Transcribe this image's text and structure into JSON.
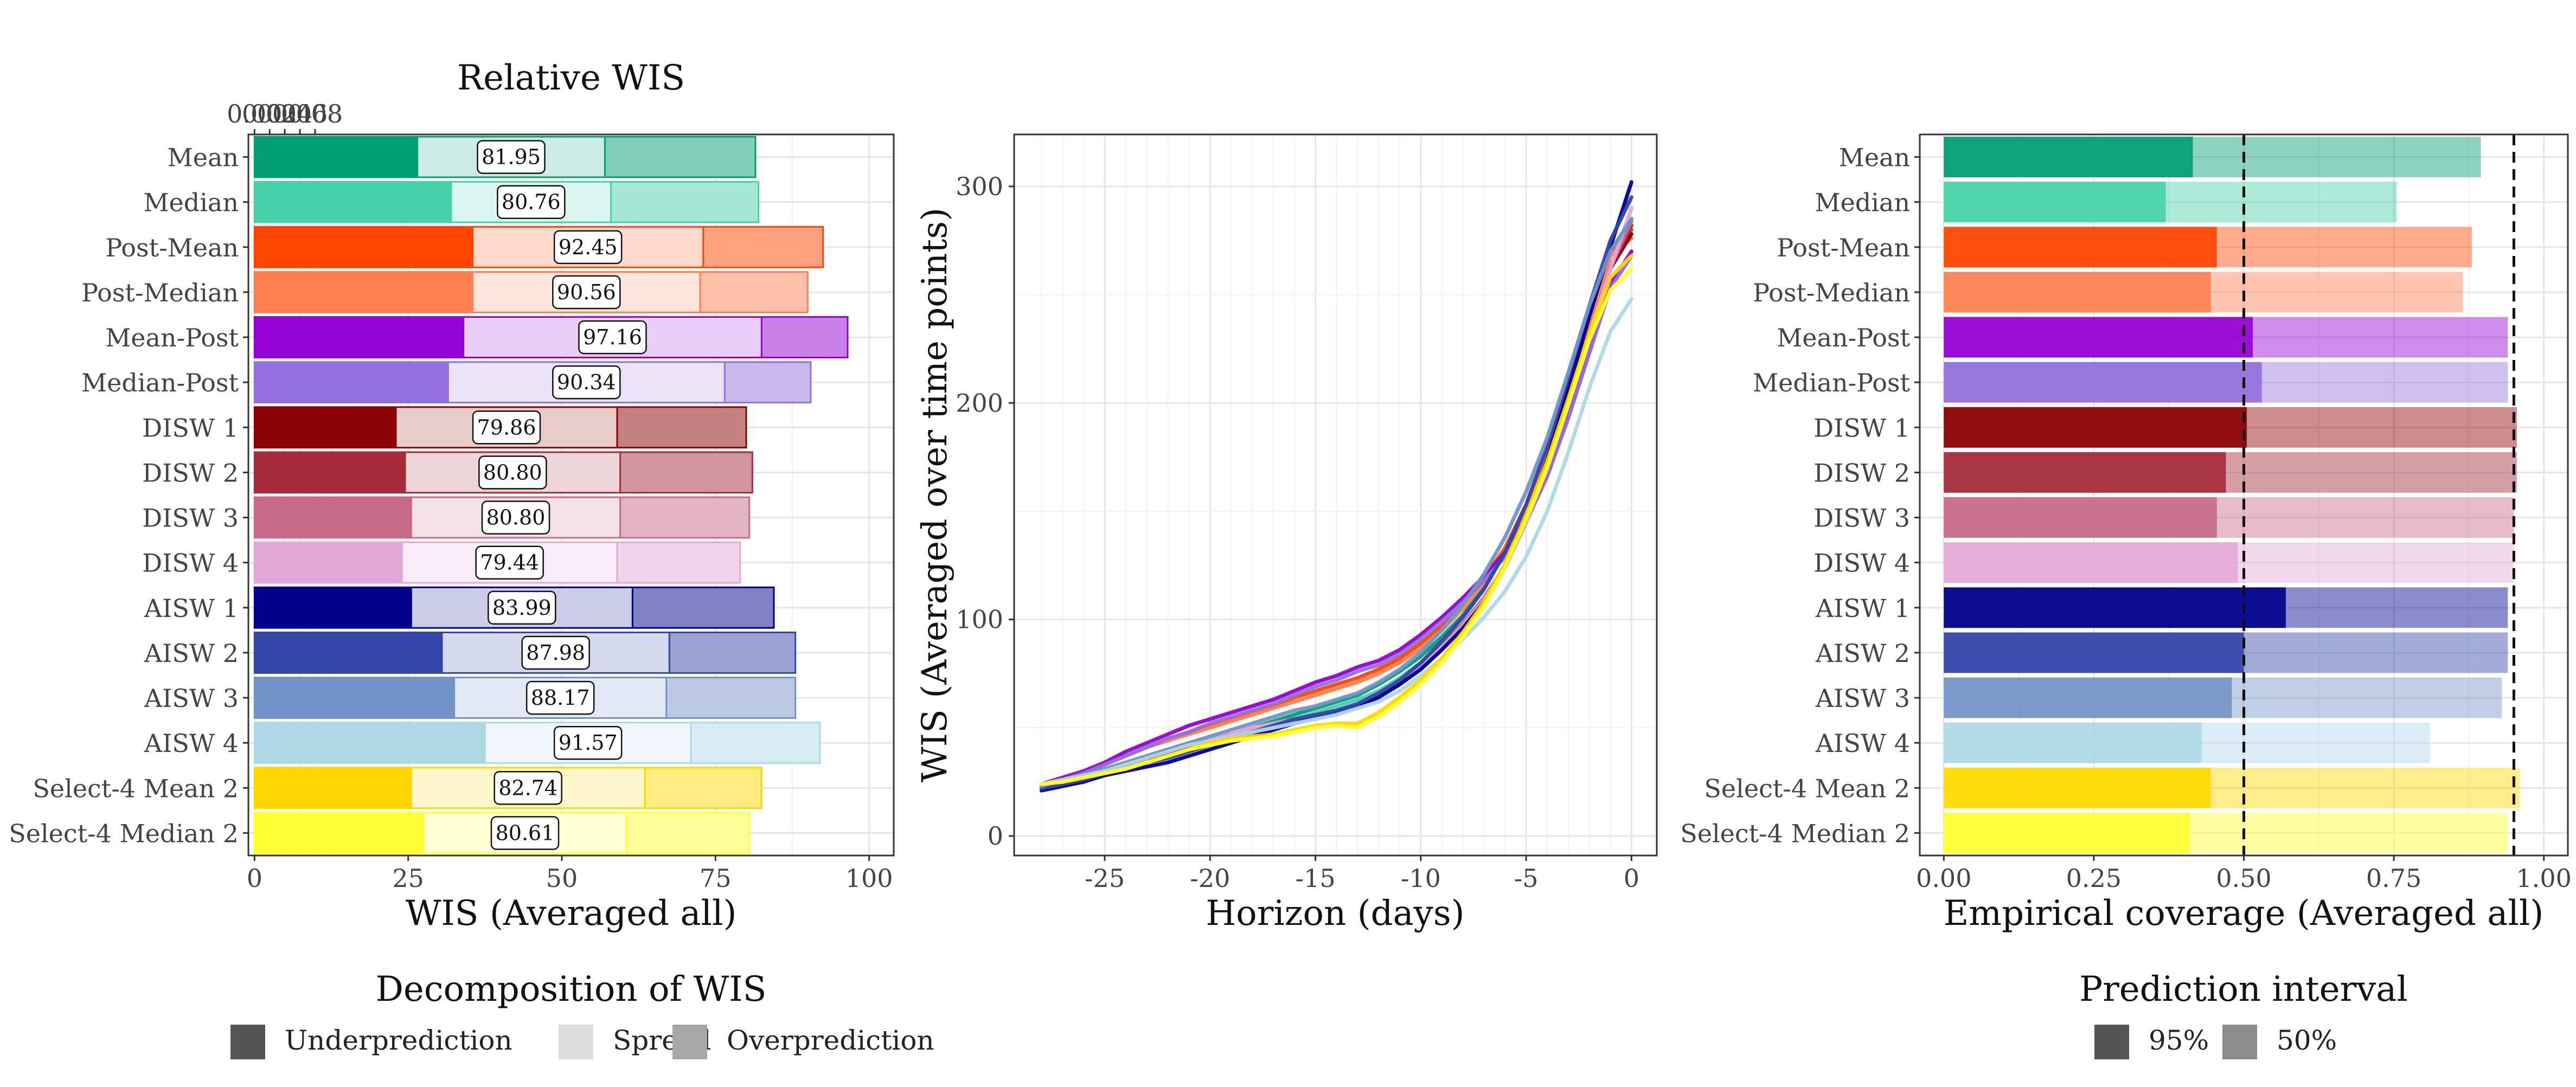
{
  "colors": {
    "Mean": "#009E73",
    "Median": "#48D1A8",
    "Post-Mean": "#FF4500",
    "Post-Median": "#FF7F50",
    "Mean-Post": "#9400D3",
    "Median-Post": "#9370DB",
    "DISW 1": "#8B0000",
    "DISW 2": "#A52A3A",
    "DISW 3": "#C76A8A",
    "DISW 4": "#E3A8D6",
    "AISW 1": "#00008B",
    "AISW 2": "#3445A8",
    "AISW 3": "#7393C8",
    "AISW 4": "#ADD8E6",
    "Select-4 Mean 2": "#FFD700",
    "Select-4 Median 2": "#FFFF33"
  },
  "chart_data": [
    {
      "type": "bar",
      "orientation": "horizontal",
      "stacked": true,
      "categories": [
        "Mean",
        "Median",
        "Post-Mean",
        "Post-Median",
        "Mean-Post",
        "Median-Post",
        "DISW 1",
        "DISW 2",
        "DISW 3",
        "DISW 4",
        "AISW 1",
        "AISW 2",
        "AISW 3",
        "AISW 4",
        "Select-4 Mean 2",
        "Select-4 Median 2"
      ],
      "series": [
        {
          "name": "Underprediction",
          "values": [
            26.5,
            32.0,
            35.5,
            35.5,
            34.0,
            31.5,
            23.0,
            24.5,
            25.5,
            24.0,
            25.5,
            30.5,
            32.5,
            37.5,
            25.5,
            27.5
          ]
        },
        {
          "name": "Spread",
          "values": [
            30.5,
            26.0,
            37.5,
            37.0,
            48.5,
            45.0,
            36.0,
            35.0,
            34.0,
            35.0,
            36.0,
            37.0,
            34.5,
            33.5,
            38.0,
            33.0
          ]
        },
        {
          "name": "Overprediction",
          "values": [
            24.5,
            24.0,
            19.5,
            17.5,
            14.0,
            14.0,
            21.0,
            21.5,
            21.0,
            20.0,
            23.0,
            20.5,
            21.0,
            21.0,
            19.0,
            20.0
          ]
        }
      ],
      "data_labels": [
        "81.95",
        "80.76",
        "92.45",
        "90.56",
        "97.16",
        "90.34",
        "79.86",
        "80.80",
        "80.80",
        "79.44",
        "83.99",
        "87.98",
        "88.17",
        "91.57",
        "82.74",
        "80.61"
      ],
      "xlabel": "WIS (Averaged all)",
      "xlim": [
        -1,
        104
      ],
      "xticks": [
        "0",
        "25",
        "50",
        "75",
        "100"
      ],
      "secondary_axis": {
        "label": "Relative WIS",
        "ticks": [
          "0.00",
          "0.02",
          "0.04",
          "0.06",
          "0.08"
        ]
      },
      "legend": {
        "title": "Decomposition of WIS",
        "entries": [
          "Underprediction",
          "Spread",
          "Overprediction"
        ],
        "placement": "bottom"
      },
      "grid": true
    },
    {
      "type": "line",
      "x": [
        -28,
        -27,
        -26,
        -25,
        -24,
        -23,
        -22,
        -21,
        -20,
        -19,
        -18,
        -17,
        -16,
        -15,
        -14,
        -13,
        -12,
        -11,
        -10,
        -9,
        -8,
        -7,
        -6,
        -5,
        -4,
        -3,
        -2,
        -1,
        0
      ],
      "series": [
        {
          "key": "Mean",
          "values": [
            23,
            25,
            27,
            30,
            33,
            37,
            40,
            43,
            45,
            47,
            50,
            53,
            56,
            59,
            62,
            65,
            70,
            76,
            83,
            92,
            102,
            115,
            131,
            153,
            178,
            208,
            240,
            270,
            285
          ]
        },
        {
          "key": "Median",
          "values": [
            22,
            24,
            26,
            29,
            32,
            35,
            38,
            41,
            44,
            46,
            48,
            51,
            54,
            57,
            60,
            63,
            67,
            73,
            80,
            88,
            98,
            110,
            124,
            145,
            170,
            200,
            232,
            262,
            280
          ]
        },
        {
          "key": "Post-Mean",
          "values": [
            23,
            26,
            29,
            33,
            37,
            41,
            45,
            48,
            51,
            54,
            57,
            60,
            64,
            67,
            70,
            73,
            77,
            82,
            89,
            97,
            107,
            119,
            133,
            153,
            178,
            208,
            240,
            270,
            280
          ]
        },
        {
          "key": "Post-Median",
          "values": [
            23,
            26,
            29,
            33,
            37,
            41,
            44,
            47,
            50,
            53,
            56,
            59,
            62,
            65,
            68,
            71,
            75,
            80,
            87,
            95,
            105,
            117,
            131,
            151,
            176,
            206,
            238,
            268,
            276
          ]
        },
        {
          "key": "Mean-Post",
          "values": [
            24,
            27,
            30,
            34,
            39,
            43,
            47,
            51,
            54,
            57,
            60,
            63,
            67,
            71,
            74,
            78,
            81,
            86,
            93,
            101,
            110,
            120,
            131,
            147,
            167,
            194,
            224,
            255,
            270
          ]
        },
        {
          "key": "Median-Post",
          "values": [
            23,
            26,
            29,
            33,
            37,
            41,
            45,
            48,
            52,
            55,
            58,
            61,
            65,
            69,
            72,
            76,
            79,
            84,
            91,
            99,
            108,
            118,
            129,
            145,
            166,
            193,
            223,
            253,
            268
          ]
        },
        {
          "key": "DISW 1",
          "values": [
            23,
            25,
            27,
            30,
            33,
            36,
            38,
            41,
            43,
            45,
            48,
            51,
            53,
            55,
            57,
            60,
            65,
            71,
            78,
            87,
            97,
            109,
            124,
            145,
            170,
            200,
            232,
            262,
            278
          ]
        },
        {
          "key": "DISW 2",
          "values": [
            23,
            25,
            27,
            30,
            33,
            36,
            39,
            42,
            44,
            46,
            48,
            51,
            53,
            55,
            57,
            60,
            65,
            71,
            78,
            87,
            97,
            109,
            124,
            145,
            170,
            200,
            232,
            262,
            282
          ]
        },
        {
          "key": "DISW 3",
          "values": [
            23,
            25,
            28,
            31,
            34,
            37,
            40,
            42,
            45,
            47,
            49,
            51,
            53,
            55,
            58,
            61,
            66,
            72,
            79,
            88,
            98,
            110,
            125,
            146,
            171,
            201,
            233,
            263,
            284
          ]
        },
        {
          "key": "DISW 4",
          "values": [
            23,
            25,
            28,
            31,
            34,
            37,
            40,
            43,
            45,
            47,
            50,
            52,
            54,
            56,
            58,
            61,
            65,
            71,
            78,
            87,
            97,
            109,
            124,
            145,
            170,
            200,
            232,
            262,
            290
          ]
        },
        {
          "key": "AISW 1",
          "values": [
            21,
            23,
            25,
            28,
            30,
            32,
            34,
            37,
            40,
            43,
            46,
            49,
            52,
            55,
            57,
            60,
            64,
            70,
            77,
            86,
            96,
            108,
            124,
            146,
            174,
            206,
            240,
            272,
            302
          ]
        },
        {
          "key": "AISW 2",
          "values": [
            22,
            24,
            26,
            29,
            31,
            34,
            36,
            39,
            42,
            45,
            48,
            51,
            54,
            56,
            58,
            61,
            66,
            72,
            80,
            90,
            101,
            114,
            131,
            153,
            180,
            212,
            245,
            275,
            295
          ]
        },
        {
          "key": "AISW 3",
          "values": [
            23,
            26,
            28,
            31,
            34,
            37,
            40,
            43,
            46,
            49,
            52,
            55,
            58,
            60,
            63,
            66,
            71,
            77,
            85,
            95,
            107,
            121,
            138,
            159,
            184,
            214,
            245,
            270,
            285
          ]
        },
        {
          "key": "AISW 4",
          "values": [
            24,
            26,
            28,
            30,
            33,
            36,
            39,
            42,
            44,
            46,
            48,
            50,
            52,
            54,
            56,
            59,
            62,
            67,
            74,
            82,
            91,
            101,
            113,
            129,
            150,
            177,
            207,
            233,
            248
          ]
        },
        {
          "key": "Select-4 Mean 2",
          "values": [
            24,
            25,
            27,
            29,
            31,
            34,
            37,
            40,
            43,
            45,
            46,
            47,
            49,
            51,
            52,
            52,
            57,
            64,
            72,
            82,
            94,
            108,
            126,
            148,
            173,
            202,
            232,
            258,
            268
          ]
        },
        {
          "key": "Select-4 Median 2",
          "values": [
            24,
            25,
            27,
            29,
            31,
            34,
            37,
            40,
            42,
            44,
            45,
            46,
            48,
            50,
            51,
            50,
            55,
            62,
            70,
            80,
            92,
            106,
            124,
            146,
            170,
            199,
            229,
            252,
            262
          ]
        }
      ],
      "xlabel": "Horizon (days)",
      "ylabel": "WIS (Averaged over time points)",
      "xlim": [
        -29.3,
        1.2
      ],
      "ylim": [
        -9,
        324
      ],
      "xticks": [
        -25,
        -20,
        -15,
        -10,
        -5,
        0
      ],
      "xtick_labels": [
        "-25",
        "-20",
        "-15",
        "-10",
        "-5",
        "0"
      ],
      "yticks": [
        0,
        100,
        200,
        300
      ],
      "ytick_labels": [
        "0",
        "100",
        "200",
        "300"
      ],
      "grid": true
    },
    {
      "type": "bar",
      "orientation": "horizontal",
      "categories": [
        "Mean",
        "Median",
        "Post-Mean",
        "Post-Median",
        "Mean-Post",
        "Median-Post",
        "DISW 1",
        "DISW 2",
        "DISW 3",
        "DISW 4",
        "AISW 1",
        "AISW 2",
        "AISW 3",
        "AISW 4",
        "Select-4 Mean 2",
        "Select-4 Median 2"
      ],
      "series": [
        {
          "name": "95%",
          "values": [
            0.415,
            0.37,
            0.455,
            0.445,
            0.515,
            0.53,
            0.505,
            0.47,
            0.455,
            0.49,
            0.57,
            0.5,
            0.48,
            0.43,
            0.445,
            0.41
          ]
        },
        {
          "name": "50%",
          "values": [
            0.895,
            0.755,
            0.88,
            0.865,
            0.94,
            0.94,
            0.955,
            0.955,
            0.95,
            0.95,
            0.94,
            0.94,
            0.93,
            0.81,
            0.96,
            0.94
          ]
        }
      ],
      "reference_lines": [
        0.5,
        0.95
      ],
      "xlabel": "Empirical coverage (Averaged all)",
      "xlim": [
        -0.04,
        1.04
      ],
      "xticks": [
        0,
        0.25,
        0.5,
        0.75,
        1
      ],
      "xtick_labels": [
        "0.00",
        "0.25",
        "0.50",
        "0.75",
        "1.00"
      ],
      "legend": {
        "title": "Prediction interval",
        "entries": [
          "95%",
          "50%"
        ],
        "placement": "bottom"
      },
      "grid": true
    }
  ]
}
